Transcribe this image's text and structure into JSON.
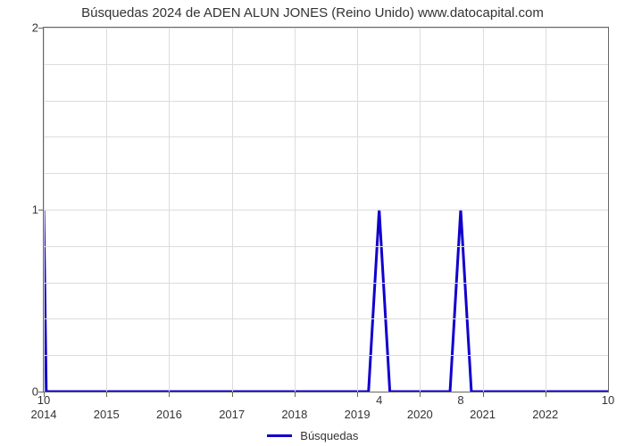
{
  "chart": {
    "type": "line",
    "title": "Búsquedas 2024 de ADEN ALUN JONES (Reino Unido) www.datocapital.com",
    "title_fontsize": 15,
    "title_color": "#333333",
    "background_color": "#ffffff",
    "plot_border_color": "#666666",
    "grid_color": "#dcdcdc",
    "line_color": "#1100cc",
    "line_width": 3,
    "xlim": [
      2014,
      2023
    ],
    "ylim": [
      0,
      2
    ],
    "x_ticks_major": [
      2014,
      2015,
      2016,
      2017,
      2018,
      2019,
      2020,
      2021,
      2022
    ],
    "x_ticks_secondary": [
      {
        "pos": 2014,
        "label": "10"
      },
      {
        "pos": 2019.35,
        "label": "4"
      },
      {
        "pos": 2020.65,
        "label": "8"
      },
      {
        "pos": 2023,
        "label": "10"
      }
    ],
    "y_ticks": [
      0,
      1,
      2
    ],
    "y_minor_gridlines": 4,
    "series": {
      "name": "Búsquedas",
      "x": [
        2014,
        2014.04,
        2019.18,
        2019.35,
        2019.52,
        2020.48,
        2020.65,
        2020.82,
        2023
      ],
      "y": [
        1,
        0,
        0,
        1,
        0,
        0,
        1,
        0,
        0
      ]
    },
    "legend": {
      "position": "bottom-center",
      "fontsize": 13
    }
  }
}
